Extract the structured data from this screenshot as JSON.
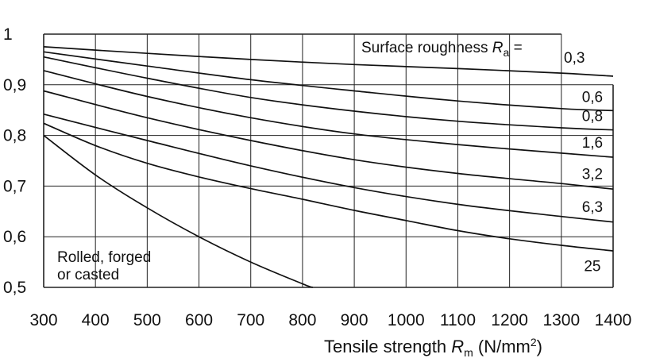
{
  "chart_data": {
    "type": "line",
    "xlabel": {
      "prefix": "Tensile strength ",
      "symbol": "R",
      "subscript": "m",
      "unit_open": " (N/mm",
      "unit_sup": "2",
      "unit_close": ")"
    },
    "ylabel": "",
    "xlim": [
      300,
      1400
    ],
    "ylim": [
      0.5,
      1.0
    ],
    "x_ticks": [
      300,
      400,
      500,
      600,
      700,
      800,
      900,
      1000,
      1100,
      1200,
      1300,
      1400
    ],
    "x_tick_labels": [
      "300",
      "400",
      "500",
      "600",
      "700",
      "800",
      "900",
      "1000",
      "1100",
      "1200",
      "1300",
      "1400"
    ],
    "y_ticks": [
      0.5,
      0.6,
      0.7,
      0.8,
      0.9,
      1.0
    ],
    "y_tick_labels": [
      "0,5",
      "0,6",
      "0,7",
      "0,8",
      "0,9",
      "1"
    ],
    "grid": true,
    "legend_title": {
      "prefix": "Surface roughness ",
      "symbol": "R",
      "subscript": "a",
      "suffix": " = "
    },
    "series": [
      {
        "name": "0,3",
        "x": [
          300,
          500,
          700,
          900,
          1100,
          1300,
          1400
        ],
        "y": [
          0.975,
          0.962,
          0.95,
          0.94,
          0.932,
          0.923,
          0.917
        ]
      },
      {
        "name": "0,6",
        "x": [
          300,
          500,
          700,
          900,
          1100,
          1300,
          1400
        ],
        "y": [
          0.965,
          0.937,
          0.91,
          0.888,
          0.868,
          0.853,
          0.849
        ]
      },
      {
        "name": "0,8",
        "x": [
          300,
          500,
          700,
          900,
          1100,
          1300,
          1400
        ],
        "y": [
          0.955,
          0.913,
          0.875,
          0.848,
          0.828,
          0.815,
          0.811
        ]
      },
      {
        "name": "1,6",
        "x": [
          300,
          500,
          700,
          900,
          1100,
          1300,
          1400
        ],
        "y": [
          0.928,
          0.877,
          0.835,
          0.803,
          0.782,
          0.765,
          0.757
        ]
      },
      {
        "name": "3,2",
        "x": [
          300,
          500,
          700,
          900,
          1100,
          1300,
          1400
        ],
        "y": [
          0.888,
          0.835,
          0.79,
          0.752,
          0.725,
          0.705,
          0.694
        ]
      },
      {
        "name": "6,3",
        "x": [
          300,
          500,
          700,
          900,
          1100,
          1300,
          1400
        ],
        "y": [
          0.842,
          0.79,
          0.74,
          0.697,
          0.664,
          0.64,
          0.629
        ]
      },
      {
        "name": "25",
        "x": [
          300,
          400,
          500,
          600,
          700,
          800,
          900,
          1000,
          1100,
          1200,
          1300,
          1400
        ],
        "y": [
          0.824,
          0.78,
          0.745,
          0.718,
          0.695,
          0.674,
          0.652,
          0.632,
          0.612,
          0.596,
          0.583,
          0.572
        ]
      },
      {
        "name": "Rolled, forged or casted",
        "x": [
          300,
          400,
          500,
          600,
          700,
          800,
          820
        ],
        "y": [
          0.8,
          0.722,
          0.657,
          0.6,
          0.55,
          0.507,
          0.5
        ]
      }
    ],
    "series_labels": [
      "0,3",
      "0,6",
      "0,8",
      "1,6",
      "3,2",
      "6,3",
      "25"
    ],
    "annotation": [
      "Rolled,  forged",
      "or casted"
    ]
  }
}
